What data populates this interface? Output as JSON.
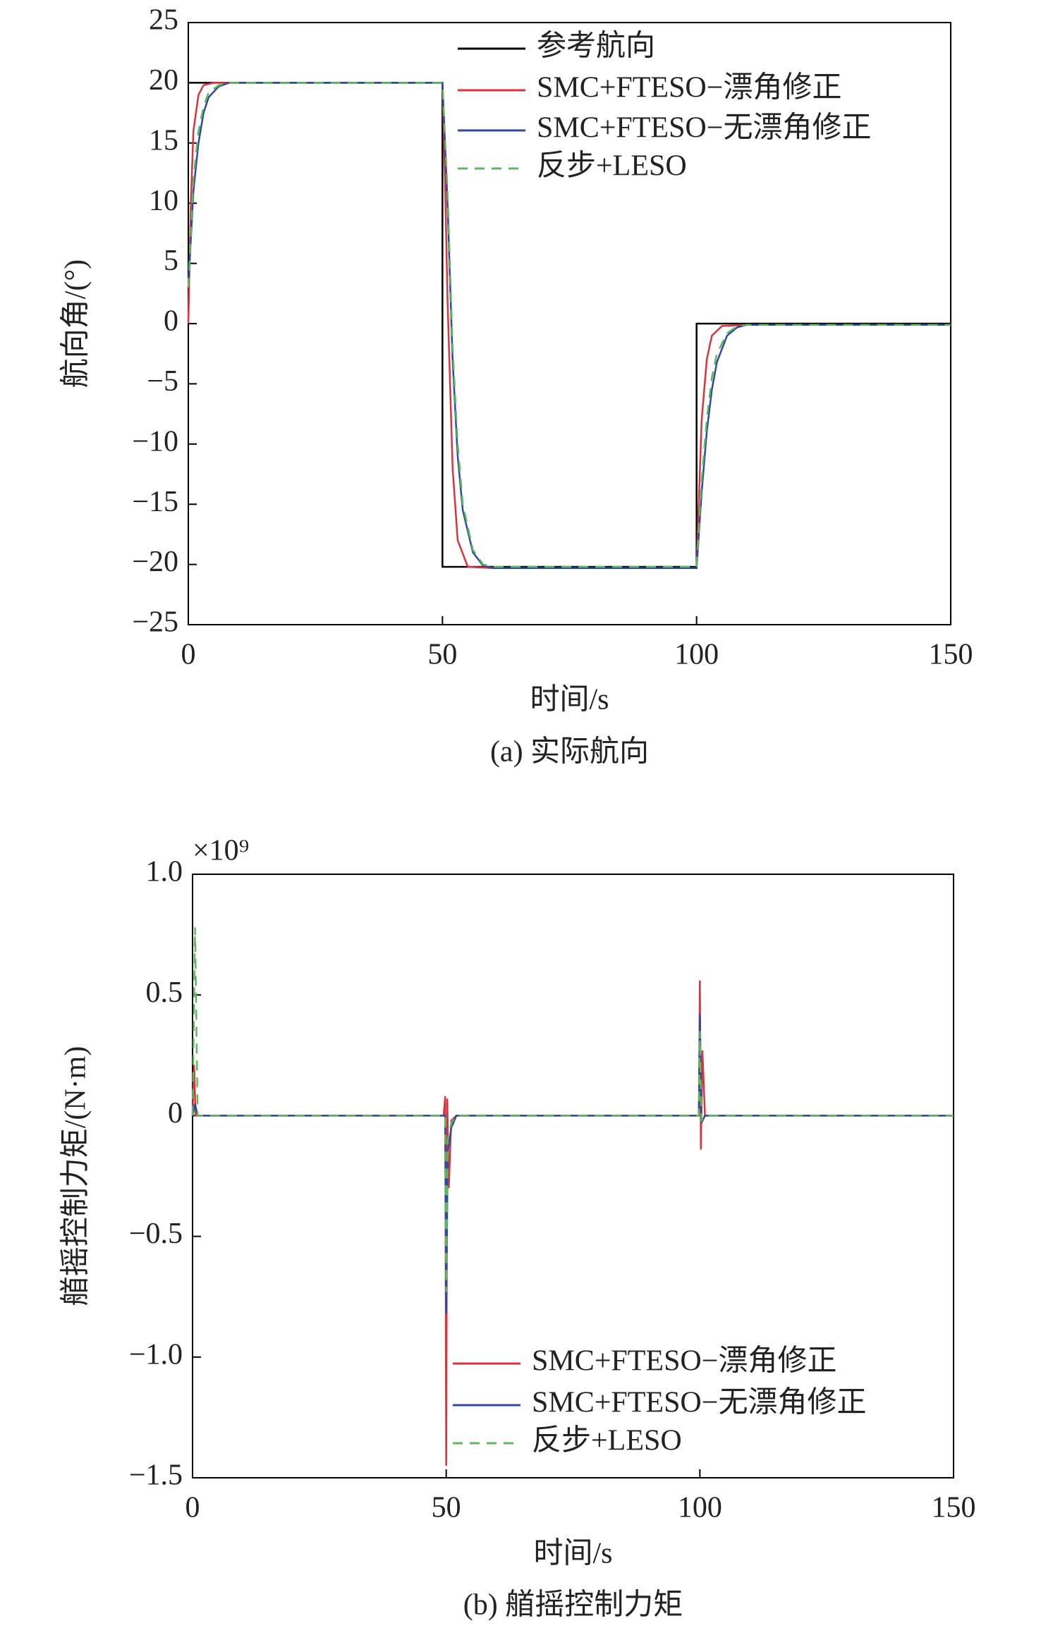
{
  "chart_data": [
    {
      "type": "line",
      "caption": "(a) 实际航向",
      "x_label": "时间/s",
      "y_label": "航向角/(°)",
      "xlim": [
        0,
        150
      ],
      "xticks": [
        0,
        50,
        100,
        150
      ],
      "ylim": [
        -25,
        25
      ],
      "yticks": [
        {
          "value": -25,
          "label": "−25"
        },
        {
          "value": -20,
          "label": "−20"
        },
        {
          "value": -15,
          "label": "−15"
        },
        {
          "value": -10,
          "label": "−10"
        },
        {
          "value": -5,
          "label": "−5"
        },
        0,
        5,
        10,
        15,
        20,
        25
      ],
      "series": [
        {
          "name": "参考航向",
          "color": "#000000",
          "style": "solid",
          "x": [
            0,
            50,
            50,
            100,
            100,
            150
          ],
          "values": [
            20,
            20,
            -20.2,
            -20.2,
            0,
            0
          ]
        },
        {
          "name": "SMC+FTESO−漂角修正",
          "color": "#d9333f",
          "style": "solid",
          "x": [
            0,
            0.5,
            1,
            2,
            3,
            5,
            10,
            50,
            50.5,
            51,
            52,
            53,
            55,
            60,
            100,
            100.5,
            101,
            102,
            103,
            105,
            110,
            150
          ],
          "values": [
            0,
            10,
            16,
            19,
            19.8,
            20,
            20,
            20,
            12,
            2,
            -12,
            -18,
            -20.2,
            -20.3,
            -20.3,
            -14,
            -8,
            -3,
            -1,
            -0.2,
            -0.1,
            -0.1
          ]
        },
        {
          "name": "SMC+FTESO−无漂角修正",
          "color": "#2e4a9e",
          "style": "solid",
          "x": [
            0,
            1,
            2,
            3,
            4,
            6,
            8,
            10,
            50,
            51,
            52,
            53,
            54,
            56,
            58,
            60,
            100,
            101,
            102,
            103,
            104,
            106,
            108,
            110,
            150
          ],
          "values": [
            3,
            11,
            15,
            17.5,
            18.8,
            19.7,
            20,
            20,
            20,
            10,
            -3,
            -11,
            -15.5,
            -19,
            -20.1,
            -20.3,
            -20.3,
            -14,
            -9,
            -5.5,
            -3.2,
            -1,
            -0.3,
            -0.1,
            -0.1
          ]
        },
        {
          "name": "反步+LESO",
          "color": "#5cb85c",
          "style": "dashed",
          "x": [
            0,
            1,
            2,
            3,
            4,
            6,
            8,
            10,
            50,
            51,
            52,
            53,
            54,
            56,
            58,
            60,
            100,
            101,
            102,
            103,
            104,
            106,
            108,
            110,
            150
          ],
          "values": [
            3,
            12,
            16,
            18,
            19.2,
            19.8,
            20,
            20,
            20,
            11,
            -2,
            -10,
            -15,
            -18.8,
            -20,
            -20.2,
            -20.2,
            -13,
            -8,
            -4.5,
            -2.5,
            -0.8,
            -0.2,
            -0.1,
            -0.1
          ]
        }
      ]
    },
    {
      "type": "line",
      "caption": "(b) 艏摇控制力矩",
      "x_label": "时间/s",
      "y_label": "艏摇控制力矩/(N·m)",
      "y_multiplier": "×10⁹",
      "xlim": [
        0,
        150
      ],
      "xticks": [
        0,
        50,
        100,
        150
      ],
      "ylim": [
        -1.5,
        1.0
      ],
      "yticks": [
        {
          "value": -1.5,
          "label": "−1.5"
        },
        {
          "value": -1.0,
          "label": "−1.0"
        },
        {
          "value": -0.5,
          "label": "−0.5"
        },
        0,
        0.5,
        {
          "value": 1.0,
          "label": "1.0"
        }
      ],
      "series": [
        {
          "name": "SMC+FTESO−漂角修正",
          "color": "#d9333f",
          "style": "solid",
          "x": [
            0,
            0.3,
            0.6,
            1,
            49.5,
            49.8,
            50,
            50.2,
            50.5,
            51,
            52,
            99.8,
            100,
            100.2,
            100.5,
            101,
            150
          ],
          "values": [
            0,
            0.21,
            0,
            0,
            0,
            0.08,
            -1.45,
            0.07,
            -0.3,
            -0.02,
            0,
            0,
            0.56,
            -0.14,
            0.27,
            0,
            0
          ]
        },
        {
          "name": "SMC+FTESO−无漂角修正",
          "color": "#2e4a9e",
          "style": "solid",
          "x": [
            0,
            0.5,
            1,
            49.8,
            50,
            50.3,
            51,
            52,
            99.8,
            100,
            100.3,
            101,
            150
          ],
          "values": [
            0,
            0.05,
            0,
            0,
            -0.82,
            -0.15,
            -0.05,
            0,
            0,
            0.42,
            -0.03,
            0,
            0
          ]
        },
        {
          "name": "反步+LESO",
          "color": "#5cb85c",
          "style": "dashed",
          "x": [
            0,
            0.5,
            1,
            49.8,
            50,
            50.3,
            51,
            52,
            99.8,
            100,
            100.3,
            101,
            150
          ],
          "values": [
            0,
            0.78,
            0,
            0,
            -0.73,
            -0.1,
            -0.03,
            0,
            0,
            0.35,
            -0.02,
            0,
            0
          ]
        }
      ]
    }
  ]
}
